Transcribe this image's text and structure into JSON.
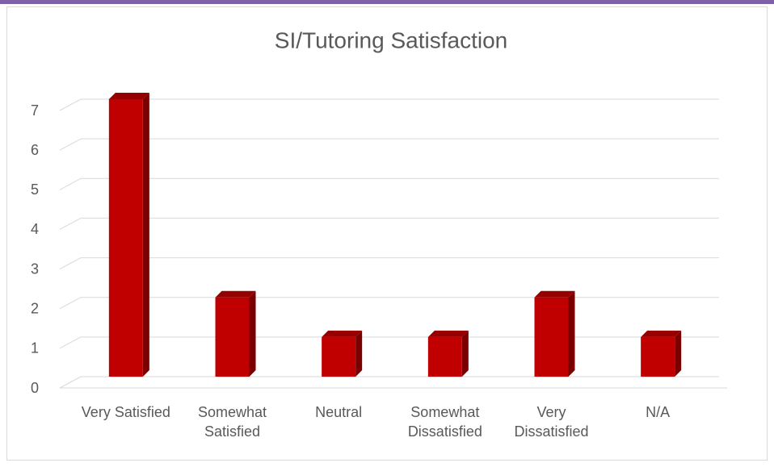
{
  "chart_data": {
    "type": "bar",
    "title": "SI/Tutoring Satisfaction",
    "categories": [
      "Very Satisfied",
      "Somewhat Satisfied",
      "Neutral",
      "Somewhat Dissatisfied",
      "Very Dissatisfied",
      "N/A"
    ],
    "values": [
      7,
      2,
      1,
      1,
      2,
      1
    ],
    "color": "#c00000",
    "ylim": [
      0,
      7
    ],
    "yticks": [
      0,
      1,
      2,
      3,
      4,
      5,
      6,
      7
    ],
    "grid": true
  }
}
